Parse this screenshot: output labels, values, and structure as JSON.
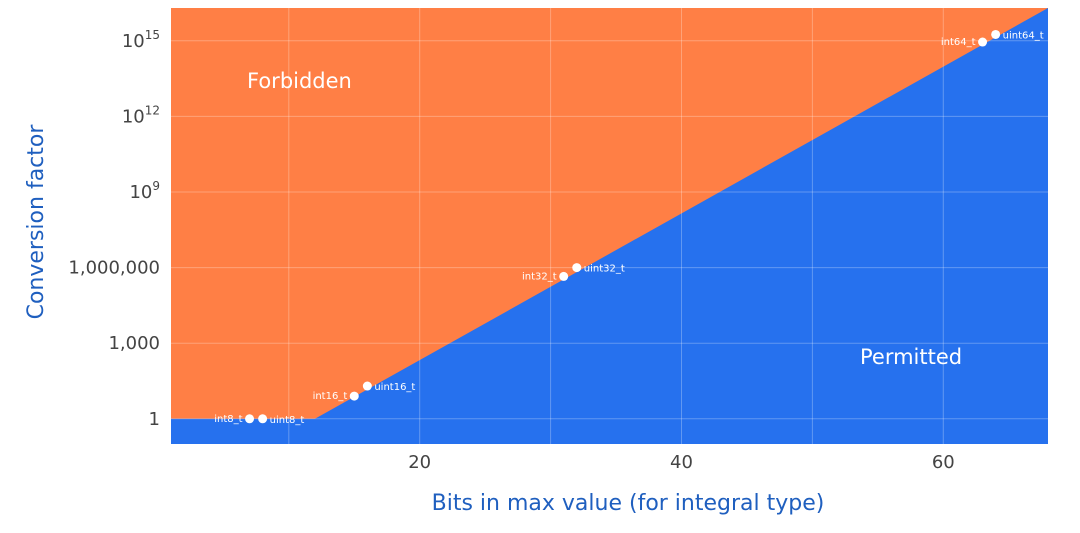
{
  "chart_data": {
    "type": "area",
    "xlabel": "Bits in max value (for integral type)",
    "ylabel": "Conversion factor",
    "xlim": [
      1,
      68
    ],
    "ylim_log10": [
      -1,
      16.3
    ],
    "y_scale": "log",
    "grid": true,
    "x_ticks": [
      {
        "value": 10,
        "label": ""
      },
      {
        "value": 20,
        "label": "20"
      },
      {
        "value": 30,
        "label": ""
      },
      {
        "value": 40,
        "label": "40"
      },
      {
        "value": 50,
        "label": ""
      },
      {
        "value": 60,
        "label": "60"
      }
    ],
    "y_ticks": [
      {
        "value_log10": 0,
        "label": "1"
      },
      {
        "value_log10": 3,
        "label": "1,000"
      },
      {
        "value_log10": 6,
        "label": "1,000,000"
      },
      {
        "value_log10": 9,
        "label": "10",
        "sup": "9"
      },
      {
        "value_log10": 12,
        "label": "10",
        "sup": "12"
      },
      {
        "value_log10": 15,
        "label": "10",
        "sup": "15"
      }
    ],
    "regions": [
      {
        "name": "Forbidden",
        "color": "#ff7f45"
      },
      {
        "name": "Permitted",
        "color": "#2671ee"
      }
    ],
    "boundary": [
      {
        "x": 1,
        "y_log10": 0
      },
      {
        "x": 12,
        "y_log10": 0
      },
      {
        "x": 68,
        "y_log10": 16.3
      }
    ],
    "points": [
      {
        "label": "int8_t",
        "x": 7,
        "y_log10": 0,
        "label_side": "left"
      },
      {
        "label": "uint8_t",
        "x": 8,
        "y_log10": 0,
        "label_side": "right"
      },
      {
        "label": "int16_t",
        "x": 15,
        "y_log10": 0.9,
        "label_side": "left"
      },
      {
        "label": "uint16_t",
        "x": 16,
        "y_log10": 1.3,
        "label_side": "right"
      },
      {
        "label": "int32_t",
        "x": 31,
        "y_log10": 5.65,
        "label_side": "left"
      },
      {
        "label": "uint32_t",
        "x": 32,
        "y_log10": 6.0,
        "label_side": "right"
      },
      {
        "label": "int64_t",
        "x": 63,
        "y_log10": 14.95,
        "label_side": "left"
      },
      {
        "label": "uint64_t",
        "x": 64,
        "y_log10": 15.25,
        "label_side": "right"
      }
    ]
  }
}
